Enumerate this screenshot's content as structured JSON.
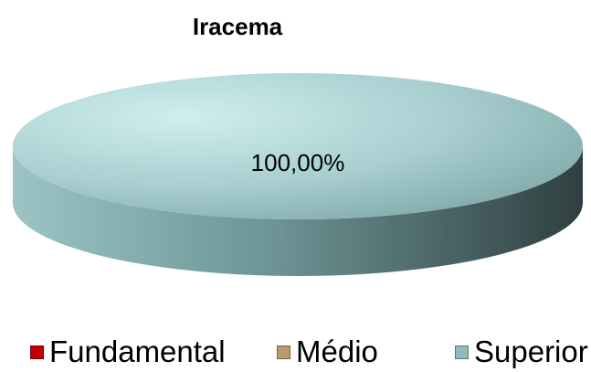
{
  "chart_data": {
    "type": "pie",
    "title": "Iracema",
    "categories": [
      "Fundamental",
      "Médio",
      "Superior"
    ],
    "values": [
      0,
      0,
      100
    ],
    "data_labels": [
      "",
      "",
      "100,00%"
    ],
    "colors": [
      "#c00000",
      "#b89a6e",
      "#8fb9bb"
    ],
    "legend_position": "bottom",
    "style": "3d"
  }
}
